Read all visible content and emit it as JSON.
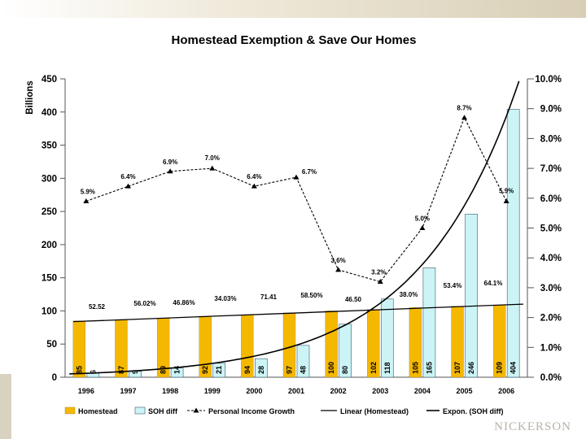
{
  "chart_data": {
    "type": "bar",
    "title": "Homestead Exemption & Save Our Homes",
    "ylabel": "Billions",
    "ylim": [
      0,
      450
    ],
    "y2lim": [
      0,
      10
    ],
    "categories": [
      "1996",
      "1997",
      "1998",
      "1999",
      "2000",
      "2001",
      "2002",
      "2003",
      "2004",
      "2005",
      "2006"
    ],
    "yticks": [
      "0",
      "50",
      "100",
      "150",
      "200",
      "250",
      "300",
      "350",
      "400",
      "450"
    ],
    "y2ticks": [
      "0.0%",
      "1.0%",
      "2.0%",
      "3.0%",
      "4.0%",
      "5.0%",
      "6.0%",
      "7.0%",
      "8.0%",
      "9.0%",
      "10.0%"
    ],
    "series": [
      {
        "name": "Homestead",
        "kind": "bar",
        "color": "#f5b800",
        "values": [
          85,
          87,
          89,
          92,
          94,
          97,
          100,
          102,
          105,
          107,
          109
        ]
      },
      {
        "name": "SOH diff",
        "kind": "bar",
        "color": "#ccf4f6",
        "values": [
          6,
          9,
          14,
          21,
          28,
          48,
          80,
          118,
          165,
          246,
          404
        ]
      },
      {
        "name": "Personal Income Growth",
        "kind": "line",
        "axis": "secondary",
        "values": [
          5.9,
          6.4,
          6.9,
          7.0,
          6.4,
          6.7,
          3.6,
          3.2,
          5.0,
          8.7,
          5.9
        ],
        "labels": [
          "5.9%",
          "6.4%",
          "6.9%",
          "7.0%",
          "6.4%",
          "6.7%",
          "3.6%",
          "3.2%",
          "5.0%",
          "8.7%",
          "5.9%"
        ]
      },
      {
        "name": "Linear (Homestead)",
        "kind": "trendline"
      },
      {
        "name": "Expon. (SOH diff)",
        "kind": "trendline"
      }
    ],
    "annotations": [
      "52.52",
      "56.02%",
      "46.86%",
      "34.03%",
      "71.41",
      "58.50%",
      "46.50",
      "38.0%",
      "53.4%",
      "64.1%"
    ]
  }
}
